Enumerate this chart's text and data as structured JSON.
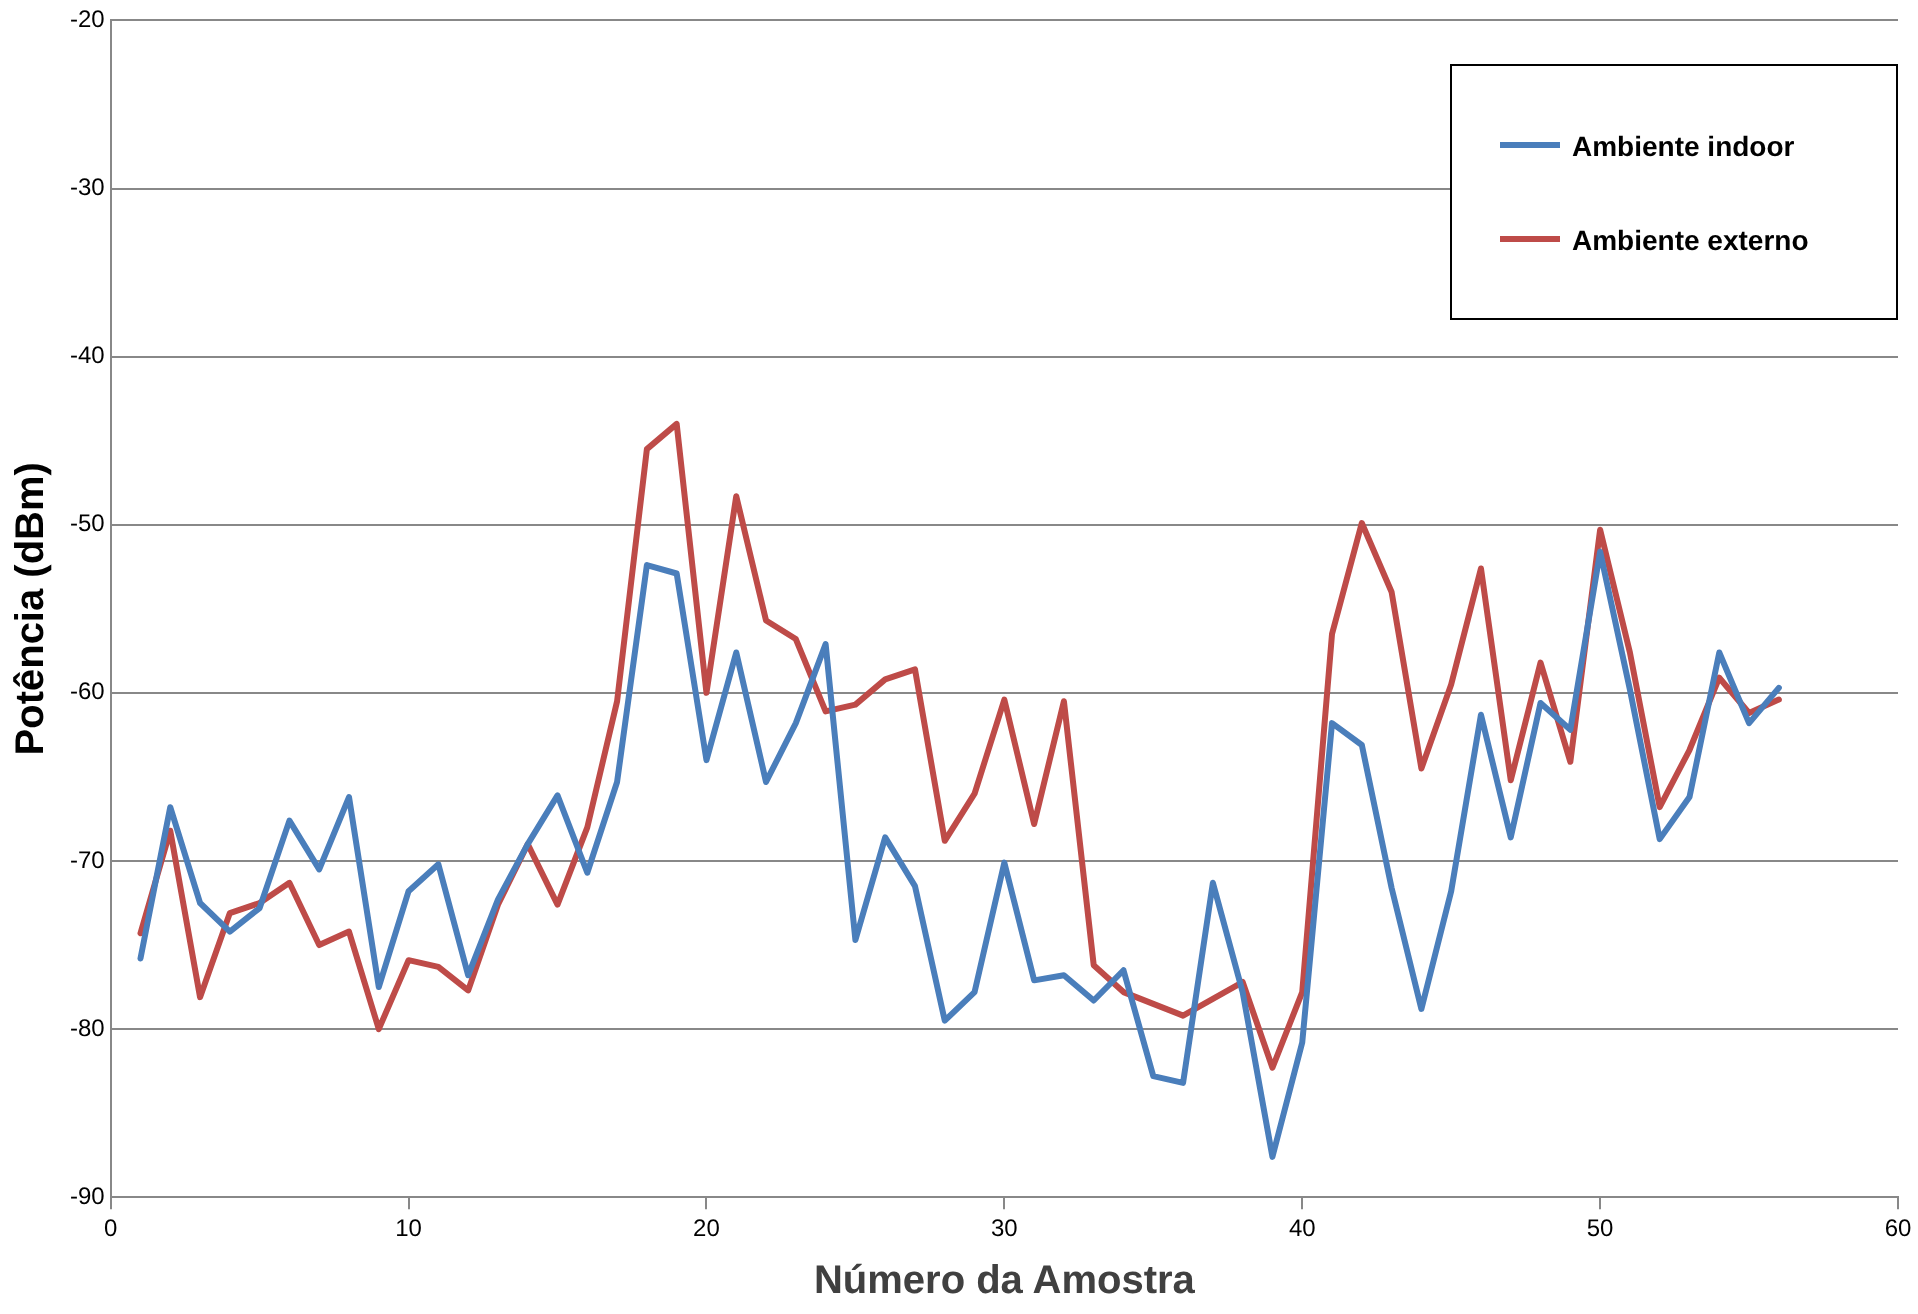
{
  "chart_data": {
    "type": "line",
    "xlabel": "Número da Amostra",
    "ylabel": "Potência (dBm)",
    "x": [
      1,
      2,
      3,
      4,
      5,
      6,
      7,
      8,
      9,
      10,
      11,
      12,
      13,
      14,
      15,
      16,
      17,
      18,
      19,
      20,
      21,
      22,
      23,
      24,
      25,
      26,
      27,
      28,
      29,
      30,
      31,
      32,
      33,
      34,
      35,
      36,
      37,
      38,
      39,
      40,
      41,
      42,
      43,
      44,
      45,
      46,
      47,
      48,
      49,
      50,
      51,
      52,
      53,
      54,
      55,
      56
    ],
    "series": [
      {
        "name": "Ambiente indoor",
        "color": "#4a7ebb",
        "values": [
          -75.8,
          -66.8,
          -72.5,
          -74.2,
          -72.8,
          -67.6,
          -70.5,
          -66.2,
          -77.5,
          -71.8,
          -70.2,
          -76.8,
          -72.3,
          -69,
          -66.1,
          -70.7,
          -65.3,
          -52.4,
          -52.9,
          -64,
          -57.6,
          -65.3,
          -61.8,
          -57.1,
          -74.7,
          -68.6,
          -71.5,
          -79.5,
          -77.8,
          -70.1,
          -77.1,
          -76.8,
          -78.3,
          -76.5,
          -82.8,
          -83.2,
          -71.3,
          -77.8,
          -87.6,
          -80.8,
          -61.8,
          -63.1,
          -71.6,
          -78.8,
          -71.8,
          -61.3,
          -68.6,
          -60.6,
          -62.2,
          -51.6,
          -59.8,
          -68.7,
          -66.2,
          -57.6,
          -61.8,
          -59.7
        ]
      },
      {
        "name": "Ambiente externo",
        "color": "#be4b48",
        "values": [
          -74.3,
          -68.2,
          -78.1,
          -73.1,
          -72.5,
          -71.3,
          -75,
          -74.2,
          -80,
          -75.9,
          -76.3,
          -77.7,
          -72.6,
          -69,
          -72.6,
          -68,
          -60.5,
          -45.5,
          -44,
          -60,
          -48.3,
          -55.7,
          -56.8,
          -61.1,
          -60.7,
          -59.2,
          -58.6,
          -68.8,
          -66,
          -60.4,
          -67.8,
          -60.5,
          -76.2,
          -77.8,
          -78.5,
          -79.2,
          -78.2,
          -77.2,
          -82.3,
          -77.8,
          -56.5,
          -49.9,
          -54,
          -64.5,
          -59.5,
          -52.6,
          -65.2,
          -58.2,
          -64.1,
          -50.3,
          -57.6,
          -66.8,
          -63.4,
          -59.1,
          -61.2,
          -60.4
        ]
      }
    ],
    "xlim": [
      0,
      60
    ],
    "xticks": [
      0,
      10,
      20,
      30,
      40,
      50,
      60
    ],
    "ylim": [
      -90,
      -20
    ],
    "yticks": [
      -90,
      -80,
      -70,
      -60,
      -50,
      -40,
      -30,
      -20
    ],
    "grid": "y",
    "legend": "top right",
    "marker": "none",
    "line_style": "solid"
  }
}
